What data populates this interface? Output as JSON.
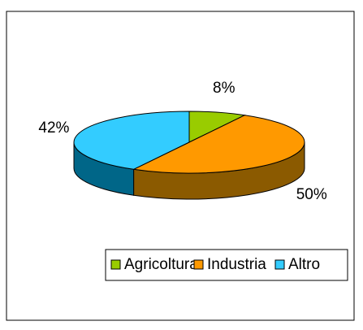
{
  "chart_data": {
    "type": "pie",
    "categories": [
      "Agricoltura",
      "Industria",
      "Altro"
    ],
    "values": [
      8,
      50,
      42
    ],
    "value_labels": [
      "8%",
      "50%",
      "42%"
    ],
    "colors": [
      "#99cc00",
      "#ff9900",
      "#33ccff"
    ],
    "side_colors": [
      "#5c7a00",
      "#8b5a00",
      "#006688"
    ],
    "legend": "bottom"
  }
}
